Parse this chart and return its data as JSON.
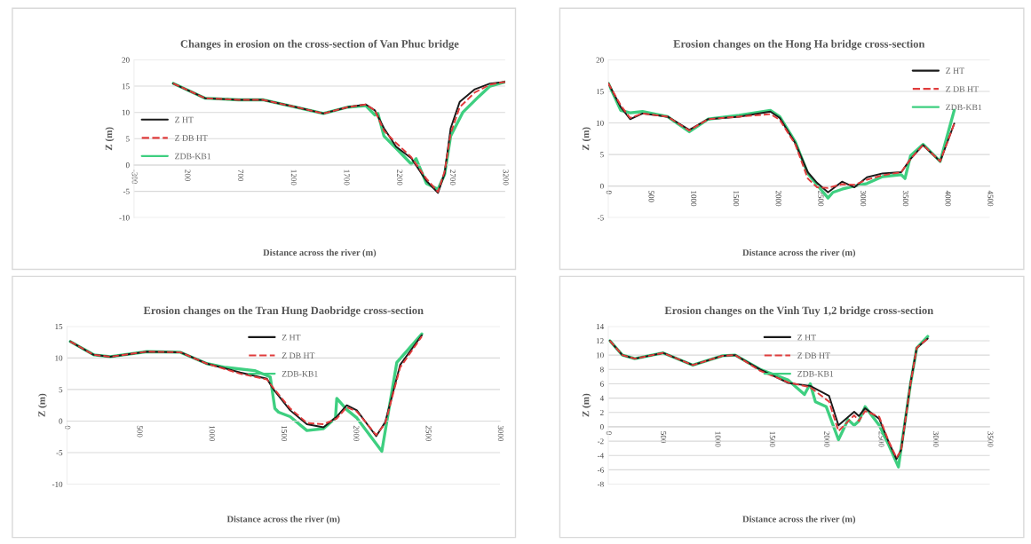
{
  "chart_data": [
    {
      "type": "line",
      "title": "Changes in erosion on the cross-section of Van Phuc bridge",
      "xlabel": "Distance across the river (m)",
      "ylabel": "Z (m)",
      "xlim": [
        -300,
        3200
      ],
      "xticks": [
        -300,
        200,
        700,
        1200,
        1700,
        2200,
        2700,
        3200
      ],
      "ylim": [
        -10,
        20
      ],
      "yticks": [
        -10,
        -5,
        0,
        5,
        10,
        15,
        20
      ],
      "grid": "y",
      "legend": "left",
      "marker": "none",
      "series": [
        {
          "name": "Z HT",
          "color": "#1a1a1a",
          "line_style": "solid",
          "x": [
            70,
            371,
            686,
            914,
            1229,
            1486,
            1714,
            1886,
            1971,
            2057,
            2171,
            2314,
            2457,
            2566,
            2629,
            2686,
            2771,
            2914,
            3057,
            3200
          ],
          "values": [
            15.5,
            12.7,
            12.4,
            12.4,
            11,
            9.8,
            11,
            11.5,
            10.4,
            7,
            3.5,
            1.3,
            -3,
            -5.3,
            -1.6,
            7,
            12,
            14.4,
            15.5,
            15.8
          ]
        },
        {
          "name": "Z DB HT",
          "color": "#e03c3c",
          "line_style": "dashed",
          "x": [
            70,
            371,
            686,
            914,
            1229,
            1486,
            1714,
            1886,
            1971,
            2057,
            2171,
            2314,
            2457,
            2566,
            2629,
            2686,
            2771,
            2914,
            3057,
            3200
          ],
          "values": [
            15.5,
            12.7,
            12.4,
            12.4,
            11,
            9.8,
            11,
            11.5,
            10.4,
            6.5,
            4.2,
            1.5,
            -2.6,
            -5.1,
            -1.2,
            6,
            11,
            13.8,
            15.3,
            15.8
          ]
        },
        {
          "name": "ZDB-KB1",
          "color": "#3ecf80",
          "line_style": "solid",
          "x": [
            70,
            371,
            686,
            914,
            1229,
            1486,
            1714,
            1886,
            1971,
            2000,
            2057,
            2171,
            2314,
            2360,
            2457,
            2566,
            2629,
            2686,
            2800,
            2950,
            3057,
            3200
          ],
          "values": [
            15.5,
            12.7,
            12.4,
            12.4,
            11,
            9.8,
            11,
            11.3,
            9.5,
            9.8,
            5.5,
            3.2,
            0.2,
            1.2,
            -3.5,
            -4.6,
            -1.8,
            5.5,
            10,
            13,
            15,
            15.8
          ]
        }
      ]
    },
    {
      "type": "line",
      "title": "Erosion changes on the Hong Ha bridge cross-section",
      "xlabel": "Distance across the river (m)",
      "ylabel": "Z (m)",
      "xlim": [
        0,
        4500
      ],
      "xticks": [
        0,
        500,
        1000,
        1500,
        2000,
        2500,
        3000,
        3500,
        4000,
        4500
      ],
      "ylim": [
        -5,
        20
      ],
      "yticks": [
        -5,
        0,
        5,
        10,
        15,
        20
      ],
      "grid": "y",
      "legend": "top right",
      "marker": "none",
      "series": [
        {
          "name": "Z HT",
          "color": "#1a1a1a",
          "line_style": "solid",
          "x": [
            0,
            147,
            257,
            404,
            699,
            956,
            1176,
            1544,
            1912,
            2022,
            2206,
            2353,
            2463,
            2592,
            2757,
            2904,
            3051,
            3235,
            3456,
            3566,
            3713,
            3915,
            4081
          ],
          "values": [
            16.3,
            12.5,
            10.6,
            11.5,
            11,
            8.9,
            10.6,
            11,
            11.8,
            10.8,
            6.8,
            2.2,
            0.5,
            -1,
            0.7,
            -0.2,
            1.4,
            2,
            2.2,
            4.3,
            6.5,
            3.9,
            9.9
          ]
        },
        {
          "name": "Z DB HT",
          "color": "#e03c3c",
          "line_style": "dashed",
          "x": [
            0,
            147,
            257,
            404,
            699,
            956,
            1176,
            1544,
            1912,
            2022,
            2206,
            2353,
            2463,
            2592,
            2757,
            2904,
            3051,
            3235,
            3456,
            3566,
            3713,
            3915,
            4081
          ],
          "values": [
            16.3,
            12.8,
            10.8,
            11.5,
            11,
            8.8,
            10.6,
            11,
            11.4,
            10.5,
            6.6,
            1.2,
            -0.2,
            -0.3,
            0.3,
            0.2,
            1,
            1.7,
            2.2,
            4.3,
            6.5,
            3.9,
            9.9
          ]
        },
        {
          "name": "ZDB-KB1",
          "color": "#3ecf80",
          "line_style": "solid",
          "x": [
            0,
            147,
            257,
            404,
            699,
            956,
            1176,
            1544,
            1912,
            2022,
            2206,
            2353,
            2463,
            2592,
            2650,
            2757,
            2904,
            3051,
            3235,
            3456,
            3500,
            3566,
            3713,
            3915,
            4081
          ],
          "values": [
            16.3,
            12,
            11.6,
            11.8,
            11,
            8.6,
            10.6,
            11.2,
            12,
            11,
            7,
            2,
            0.2,
            -1.9,
            -1,
            -0.5,
            0,
            0.4,
            1.5,
            1.8,
            1.2,
            4.8,
            6.6,
            3.9,
            12
          ]
        }
      ]
    },
    {
      "type": "line",
      "title": "Erosion changes on the Tran Hung Daobridge cross-section",
      "xlabel": "Distance across the river (m)",
      "ylabel": "Z (m)",
      "xlim": [
        0,
        3000
      ],
      "xticks": [
        0,
        500,
        1000,
        1500,
        2000,
        2500,
        3000
      ],
      "ylim": [
        -10,
        15
      ],
      "yticks": [
        -10,
        -5,
        0,
        5,
        10,
        15
      ],
      "grid": "y",
      "legend": "top",
      "marker": "none",
      "series": [
        {
          "name": "Z HT",
          "color": "#1a1a1a",
          "line_style": "solid",
          "x": [
            23,
            185,
            300,
            554,
            785,
            969,
            1200,
            1385,
            1431,
            1546,
            1662,
            1777,
            1869,
            1938,
            2008,
            2142,
            2204,
            2308,
            2458
          ],
          "values": [
            12.6,
            10.5,
            10.2,
            11,
            10.9,
            9.1,
            7.7,
            6.7,
            5,
            1.7,
            -0.5,
            -1,
            0.7,
            2.5,
            1.7,
            -2.4,
            -0.2,
            8.9,
            13.6
          ]
        },
        {
          "name": "Z DB HT",
          "color": "#e03c3c",
          "line_style": "dashed",
          "x": [
            23,
            185,
            300,
            554,
            785,
            969,
            1200,
            1385,
            1431,
            1546,
            1662,
            1777,
            1869,
            1938,
            2008,
            2142,
            2204,
            2308,
            2458
          ],
          "values": [
            12.6,
            10.5,
            10.2,
            11,
            10.9,
            9.1,
            7.5,
            6.6,
            5.2,
            2,
            -0.3,
            -0.5,
            0.4,
            2.2,
            1.5,
            -2.2,
            -0.4,
            8.5,
            13.4
          ]
        },
        {
          "name": "ZDB-KB1",
          "color": "#3ecf80",
          "line_style": "solid",
          "x": [
            23,
            185,
            300,
            554,
            785,
            969,
            1100,
            1300,
            1408,
            1440,
            1466,
            1546,
            1662,
            1777,
            1860,
            1869,
            1938,
            2008,
            2181,
            2285,
            2458
          ],
          "values": [
            12.6,
            10.5,
            10.2,
            11,
            10.9,
            9.1,
            8.5,
            8,
            7,
            2,
            1.4,
            0.7,
            -1.5,
            -1.2,
            0.5,
            3.6,
            1.8,
            0.5,
            -4.8,
            9.3,
            13.8
          ]
        }
      ]
    },
    {
      "type": "line",
      "title": "Erosion changes on the Vinh Tuy 1,2 bridge cross-section",
      "xlabel": "Distance across the river (m)",
      "ylabel": "Z (m)",
      "xlim": [
        0,
        3500
      ],
      "xticks": [
        0,
        500,
        1000,
        1500,
        2000,
        2500,
        3000,
        3500
      ],
      "ylim": [
        -8,
        14
      ],
      "yticks": [
        -8,
        -6,
        -4,
        -2,
        0,
        2,
        4,
        6,
        8,
        10,
        12,
        14
      ],
      "grid": "y",
      "legend": "top",
      "marker": "none",
      "series": [
        {
          "name": "Z HT",
          "color": "#1a1a1a",
          "line_style": "solid",
          "x": [
            14,
            129,
            244,
            503,
            776,
            1049,
            1164,
            1394,
            1652,
            1853,
            2026,
            2112,
            2256,
            2299,
            2356,
            2486,
            2572,
            2644,
            2687,
            2773,
            2830,
            2931
          ],
          "values": [
            12,
            10,
            9.5,
            10.3,
            8.6,
            9.9,
            10,
            8,
            6.1,
            5.7,
            4.3,
            0.2,
            2.1,
            1.5,
            2.6,
            1.1,
            -2.1,
            -4.5,
            -3.2,
            6.1,
            11,
            12.3
          ]
        },
        {
          "name": "Z DB HT",
          "color": "#e03c3c",
          "line_style": "dashed",
          "x": [
            14,
            129,
            244,
            503,
            776,
            1049,
            1164,
            1394,
            1652,
            1853,
            2026,
            2112,
            2256,
            2299,
            2356,
            2486,
            2572,
            2644,
            2687,
            2773,
            2830,
            2931
          ],
          "values": [
            12,
            10,
            9.5,
            10.3,
            8.6,
            9.9,
            10,
            7.8,
            6.2,
            5.5,
            3.5,
            -0.6,
            1.6,
            0.8,
            2.2,
            1.4,
            -2,
            -4.3,
            -3.3,
            6,
            11,
            12.3
          ]
        },
        {
          "name": "ZDB-KB1",
          "color": "#3ecf80",
          "line_style": "solid",
          "x": [
            14,
            129,
            244,
            503,
            776,
            1049,
            1164,
            1394,
            1652,
            1800,
            1853,
            1900,
            2000,
            2112,
            2200,
            2256,
            2299,
            2356,
            2486,
            2572,
            2662,
            2773,
            2830,
            2931
          ],
          "values": [
            12,
            10,
            9.5,
            10.3,
            8.6,
            9.9,
            10,
            8,
            6.5,
            4.5,
            6,
            3.5,
            2.8,
            -1.8,
            1,
            0.2,
            0.8,
            2.8,
            0.2,
            -2.5,
            -5.6,
            6,
            11,
            12.6
          ]
        }
      ]
    }
  ]
}
